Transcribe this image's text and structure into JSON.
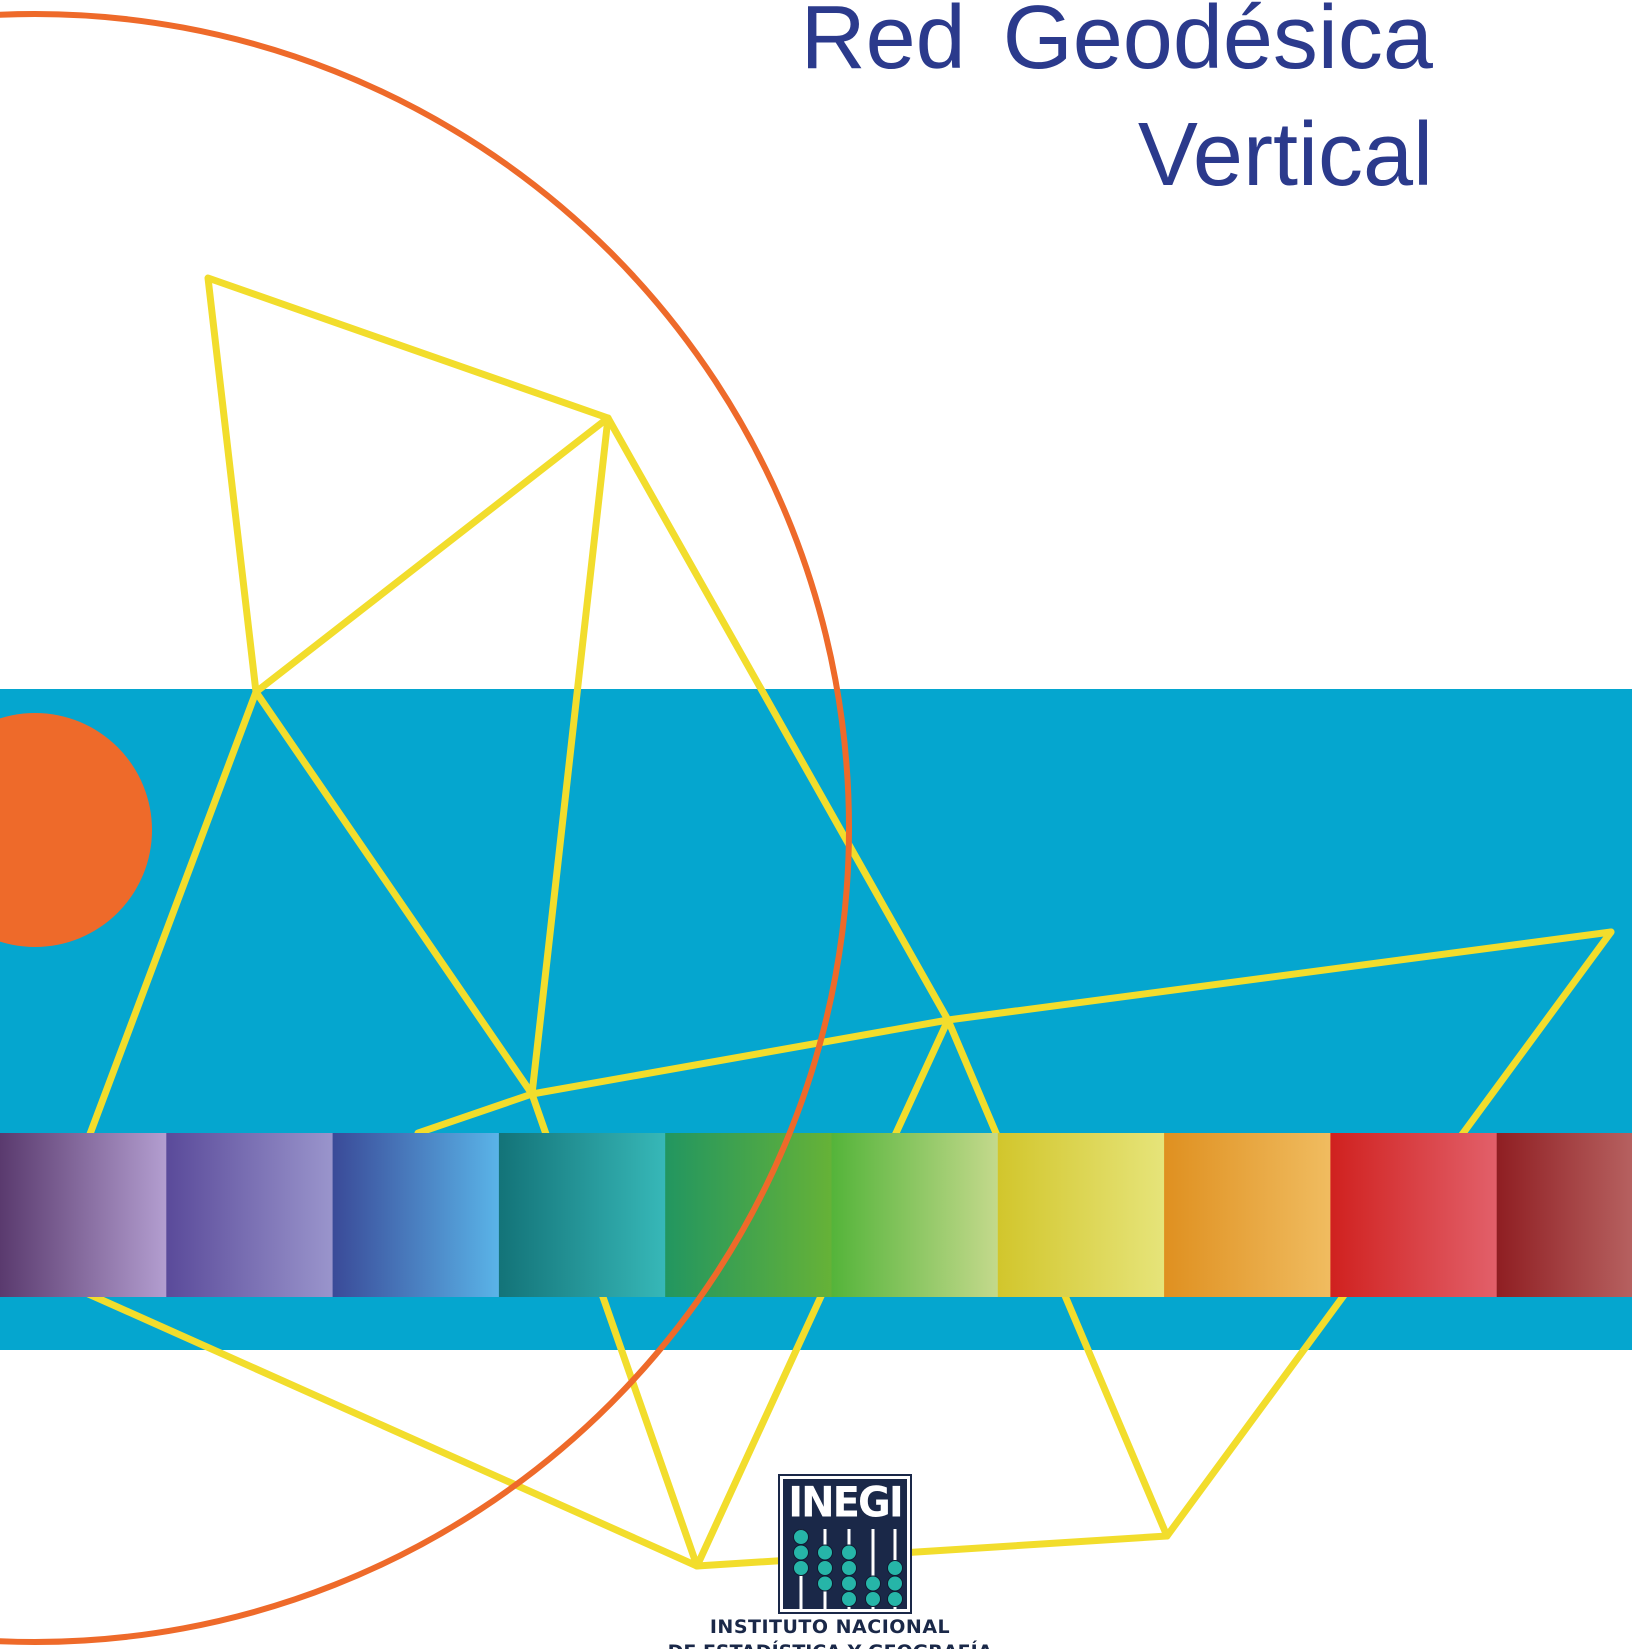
{
  "title": {
    "line1": "Red Geodésica",
    "line2": "Vertical"
  },
  "colors": {
    "title": "#2b3a8c",
    "band": "#05a6cf",
    "orange": "#ee6a2a",
    "yellow_lines": "#f2dd2c",
    "logo_bg": "#1a2848",
    "logo_dots": "#26b5a8"
  },
  "spectrum": [
    [
      "#5a3a6e",
      "#b39ed0"
    ],
    [
      "#5a4a9a",
      "#9a95cc"
    ],
    [
      "#3a4a98",
      "#5ab4e8"
    ],
    [
      "#137378",
      "#37b8b8"
    ],
    [
      "#229660",
      "#66b237"
    ],
    [
      "#54b43a",
      "#c4d98c"
    ],
    [
      "#d2c62c",
      "#e6e47a"
    ],
    [
      "#df9020",
      "#f0bc60"
    ],
    [
      "#d0211f",
      "#e2606a"
    ],
    [
      "#8f1e22",
      "#bf706e"
    ]
  ],
  "logo": {
    "wordmark": "INEGI",
    "institute_line1": "INSTITUTO NACIONAL",
    "institute_line2": "DE ESTADÍSTICA Y GEOGRAFÍA"
  }
}
